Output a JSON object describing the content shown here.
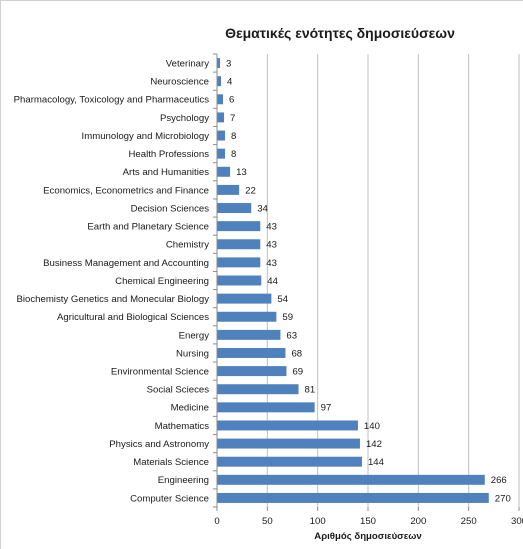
{
  "chart_data": {
    "type": "bar",
    "orientation": "horizontal",
    "title": "Θεματικές ενότητες δημοσιεύσεων",
    "xlabel": "Αριθμός δημοσιεύσεων",
    "ylabel": "",
    "xlim": [
      0,
      300
    ],
    "xticks": [
      "0",
      "50",
      "100",
      "150",
      "200",
      "250",
      "300"
    ],
    "grid": true,
    "legend": "none",
    "bar_color": "#4f81bd",
    "categories": [
      "Veterinary",
      "Neuroscience",
      "Pharmacology, Toxicology and Pharmaceutics",
      "Psychology",
      "Immunology and Microbiology",
      "Health Professions",
      "Arts and Humanities",
      "Economics, Econometrics and Finance",
      "Decision Sciences",
      "Earth and Planetary Science",
      "Chemistry",
      "Business Management and Accounting",
      "Chemical Engineering",
      "Biochemisty Genetics and Monecular Biology",
      "Agricultural and Biological Sciences",
      "Energy",
      "Nursing",
      "Environmental Science",
      "Social Scieces",
      "Medicine",
      "Mathematics",
      "Physics and Astronomy",
      "Materials Science",
      "Engineering",
      "Computer Science"
    ],
    "values": [
      3,
      4,
      6,
      7,
      8,
      8,
      13,
      22,
      34,
      43,
      43,
      43,
      44,
      54,
      59,
      63,
      68,
      69,
      81,
      97,
      140,
      142,
      144,
      266,
      270
    ]
  }
}
